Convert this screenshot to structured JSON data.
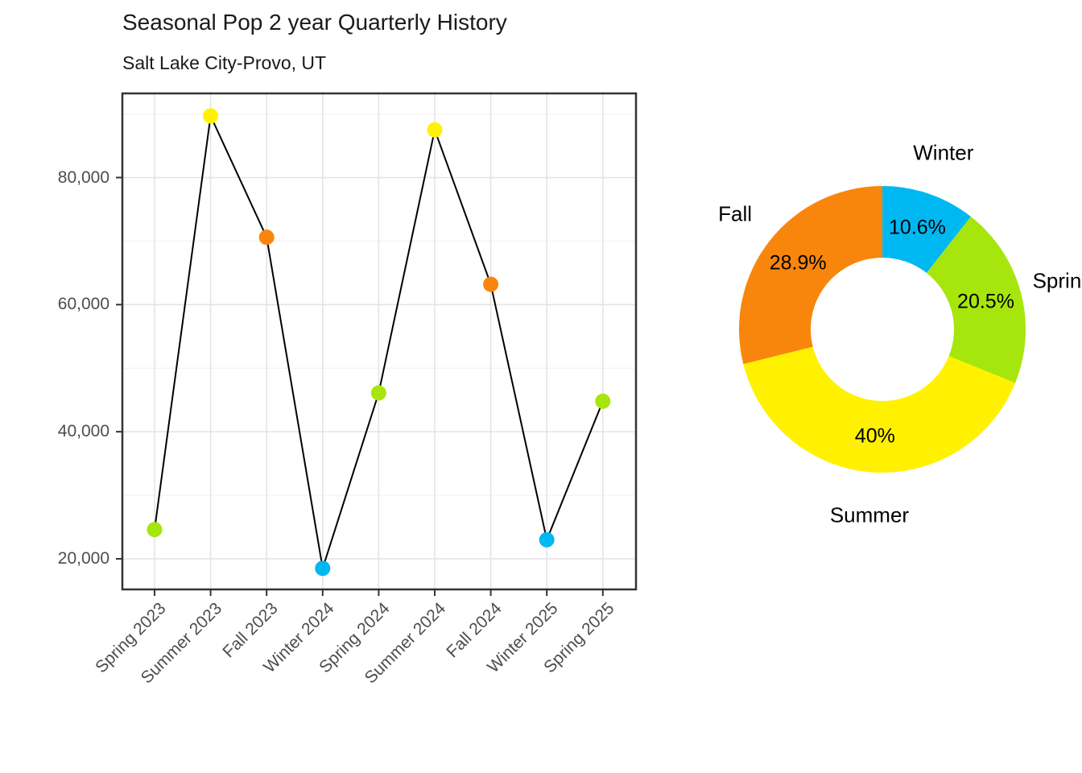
{
  "figure": {
    "title": "Seasonal Pop 2 year Quarterly History",
    "subtitle": "Salt Lake City-Provo, UT",
    "background": "#ffffff",
    "text_color": "#1a1a1a",
    "axis_text_color": "#4d4d4d",
    "panel_border_color": "#333333",
    "grid_major_color": "#e4e4e4",
    "grid_minor_color": "#f0f0f0"
  },
  "season_colors": {
    "Winter": "#00B8F1",
    "Spring": "#A6E60D",
    "Summer": "#FFF100",
    "Fall": "#F8860D"
  },
  "chart_data": [
    {
      "type": "line",
      "title": "Seasonal Pop 2 year Quarterly History",
      "subtitle": "Salt Lake City-Provo, UT",
      "xlabel": "",
      "ylabel": "",
      "categories": [
        "Spring 2023",
        "Summer 2023",
        "Fall 2023",
        "Winter 2024",
        "Spring 2024",
        "Summer 2024",
        "Fall 2024",
        "Winter 2025",
        "Spring 2025"
      ],
      "values": [
        24600,
        89700,
        70600,
        18500,
        46100,
        87500,
        63200,
        23000,
        44800
      ],
      "point_seasons": [
        "Spring",
        "Summer",
        "Fall",
        "Winter",
        "Spring",
        "Summer",
        "Fall",
        "Winter",
        "Spring"
      ],
      "line_color": "#000000",
      "yticks": [
        20000,
        40000,
        60000,
        80000
      ],
      "ytick_labels": [
        "20,000",
        "40,000",
        "60,000",
        "80,000"
      ],
      "yticks_minor": [
        30000,
        50000,
        70000,
        90000
      ],
      "ylim": [
        15200,
        93100
      ],
      "grid": "horizontal major+minor, vertical at each category",
      "legend": "none"
    },
    {
      "type": "pie",
      "subtype": "donut",
      "start": "top",
      "direction": "clockwise",
      "hole_ratio": 0.5,
      "slices": [
        {
          "label": "Winter",
          "pct": 10.6,
          "pct_display": "10.6%",
          "season": "Winter"
        },
        {
          "label": "Spring",
          "pct": 20.5,
          "pct_display": "20.5%",
          "season": "Spring"
        },
        {
          "label": "Summer",
          "pct": 40,
          "pct_display": "40%",
          "season": "Summer"
        },
        {
          "label": "Fall",
          "pct": 28.9,
          "pct_display": "28.9%",
          "season": "Fall"
        }
      ],
      "legend": "labels placed around donut"
    }
  ]
}
